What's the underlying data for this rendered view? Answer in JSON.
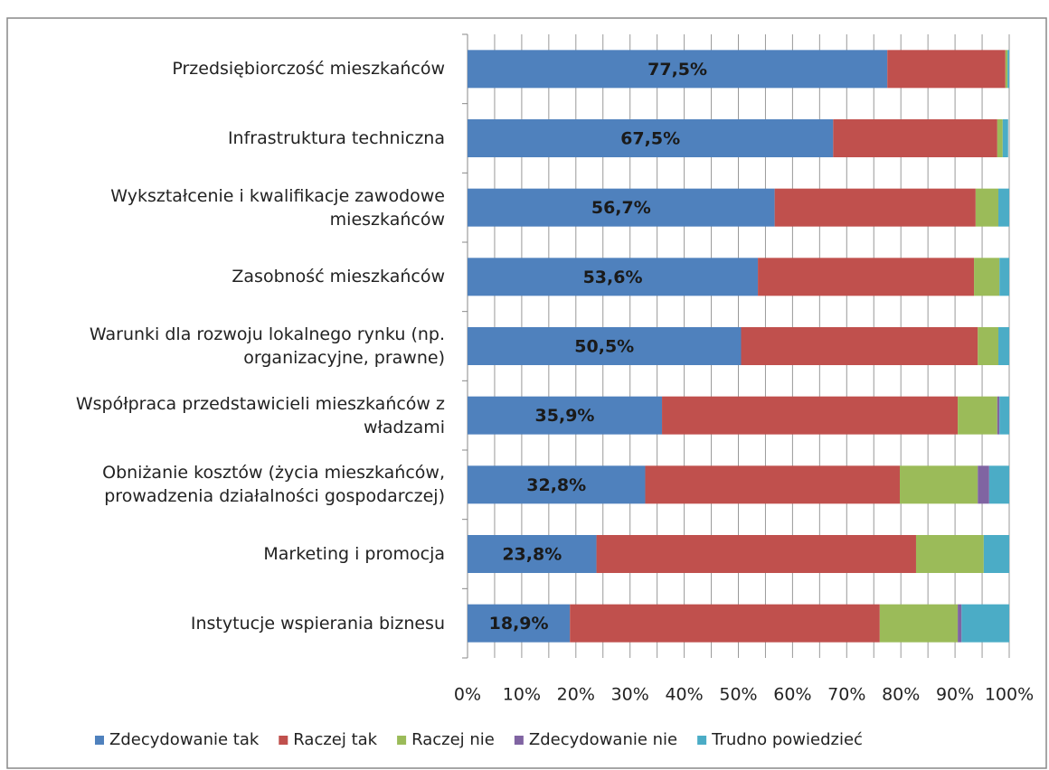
{
  "chart_data": {
    "type": "stacked_barh",
    "categories": [
      "Przedsiębiorczość mieszkańców",
      "Infrastruktura techniczna",
      "Wykształcenie i kwalifikacje zawodowe mieszkańców",
      "Zasobność mieszkańców",
      "Warunki dla rozwoju lokalnego rynku (np. organizacyjne, prawne)",
      "Współpraca przedstawicieli mieszkańców z władzami",
      "Obniżanie kosztów (życia mieszkańców, prowadzenia działalności gospodarczej)",
      "Marketing i promocja",
      "Instytucje wspierania biznesu"
    ],
    "series": [
      {
        "name": "Zdecydowanie tak",
        "color": "#4f81bd",
        "values": [
          77.5,
          67.5,
          56.7,
          53.6,
          50.5,
          35.9,
          32.8,
          23.8,
          18.9
        ],
        "value_labels": [
          "77,5%",
          "67,5%",
          "56,7%",
          "53,6%",
          "50,5%",
          "35,9%",
          "32,8%",
          "23,8%",
          "18,9%"
        ]
      },
      {
        "name": "Raczej tak",
        "color": "#c0504d",
        "values": [
          21.8,
          30.3,
          37.1,
          39.9,
          43.7,
          54.6,
          47.0,
          59.0,
          57.2
        ]
      },
      {
        "name": "Raczej nie",
        "color": "#9bbb59",
        "values": [
          0.4,
          1.0,
          4.2,
          4.7,
          3.8,
          7.3,
          14.4,
          12.5,
          14.4
        ]
      },
      {
        "name": "Zdecydowanie nie",
        "color": "#8064a2",
        "values": [
          0,
          0,
          0,
          0,
          0,
          0.4,
          2.1,
          0,
          0.7
        ]
      },
      {
        "name": "Trudno powiedzieć",
        "color": "#4bacc6",
        "values": [
          0.3,
          1.0,
          2.0,
          1.8,
          2.0,
          1.8,
          3.7,
          4.7,
          8.8
        ]
      }
    ],
    "xlim": [
      0,
      100
    ],
    "xticks": [
      {
        "value": 0,
        "label": "0%"
      },
      {
        "value": 10,
        "label": "10%"
      },
      {
        "value": 20,
        "label": "20%"
      },
      {
        "value": 30,
        "label": "30%"
      },
      {
        "value": 40,
        "label": "40%"
      },
      {
        "value": 50,
        "label": "50%"
      },
      {
        "value": 60,
        "label": "60%"
      },
      {
        "value": 70,
        "label": "70%"
      },
      {
        "value": 80,
        "label": "80%"
      },
      {
        "value": 90,
        "label": "90%"
      },
      {
        "value": 100,
        "label": "100%"
      }
    ],
    "minor_grid": [
      5,
      15,
      25,
      35,
      45,
      55,
      65,
      75,
      85,
      95
    ],
    "grid": true,
    "legend": "bottom"
  }
}
